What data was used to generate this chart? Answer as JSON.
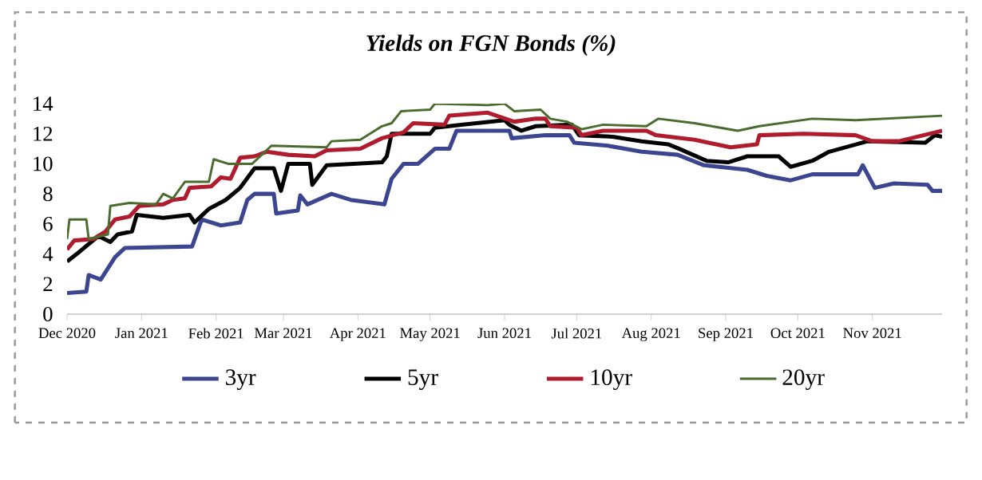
{
  "chart_data": {
    "type": "line",
    "title": "Yields on FGN Bonds (%)",
    "xlim": [
      "2020-12-01",
      "2021-11-30"
    ],
    "xticks": [
      {
        "value": "2020-12-01",
        "label": "Dec 2020"
      },
      {
        "value": "2021-01-01",
        "label": "Jan 2021"
      },
      {
        "value": "2021-02-01",
        "label": "Feb 2021"
      },
      {
        "value": "2021-03-01",
        "label": "Mar 2021"
      },
      {
        "value": "2021-04-01",
        "label": "Apr 2021"
      },
      {
        "value": "2021-05-01",
        "label": "May 2021"
      },
      {
        "value": "2021-06-01",
        "label": "Jun 2021"
      },
      {
        "value": "2021-07-01",
        "label": "Jul 2021"
      },
      {
        "value": "2021-08-01",
        "label": "Aug 2021"
      },
      {
        "value": "2021-09-01",
        "label": "Sep 2021"
      },
      {
        "value": "2021-10-01",
        "label": "Oct 2021"
      },
      {
        "value": "2021-11-01",
        "label": "Nov 2021"
      }
    ],
    "ylim": [
      0,
      14
    ],
    "yticks": [
      0,
      2,
      4,
      6,
      8,
      10,
      12,
      14
    ],
    "legend": "bottom",
    "series": [
      {
        "name": "3yr",
        "color": "#3c4590",
        "x": [
          "2020-12-01",
          "2020-12-09",
          "2020-12-10",
          "2020-12-15",
          "2020-12-21",
          "2020-12-25",
          "2021-01-22",
          "2021-01-26",
          "2021-02-03",
          "2021-02-11",
          "2021-02-14",
          "2021-02-17",
          "2021-02-25",
          "2021-02-26",
          "2021-03-07",
          "2021-03-08",
          "2021-03-11",
          "2021-03-21",
          "2021-03-29",
          "2021-04-12",
          "2021-04-15",
          "2021-04-20",
          "2021-04-26",
          "2021-05-03",
          "2021-05-09",
          "2021-05-12",
          "2021-06-03",
          "2021-06-04",
          "2021-06-18",
          "2021-06-28",
          "2021-06-30",
          "2021-07-14",
          "2021-07-28",
          "2021-08-12",
          "2021-08-23",
          "2021-09-10",
          "2021-09-18",
          "2021-09-28",
          "2021-10-07",
          "2021-10-26",
          "2021-10-28",
          "2021-11-02",
          "2021-11-10",
          "2021-11-24",
          "2021-11-26",
          "2021-11-30"
        ],
        "values": [
          1.4,
          1.5,
          2.6,
          2.3,
          3.8,
          4.4,
          4.5,
          6.3,
          5.9,
          6.1,
          7.6,
          8.0,
          8.0,
          6.7,
          6.9,
          7.9,
          7.3,
          8.0,
          7.6,
          7.3,
          9.0,
          10.0,
          10.0,
          11.0,
          11.0,
          12.2,
          12.2,
          11.7,
          11.9,
          11.9,
          11.4,
          11.2,
          10.8,
          10.6,
          9.9,
          9.6,
          9.2,
          8.9,
          9.3,
          9.3,
          9.9,
          8.4,
          8.7,
          8.6,
          8.2,
          8.2
        ]
      },
      {
        "name": "5yr",
        "color": "#000000",
        "x": [
          "2020-12-01",
          "2020-12-05",
          "2020-12-14",
          "2020-12-19",
          "2020-12-22",
          "2020-12-28",
          "2020-12-30",
          "2021-01-10",
          "2021-01-21",
          "2021-01-23",
          "2021-01-29",
          "2021-02-05",
          "2021-02-11",
          "2021-02-17",
          "2021-02-25",
          "2021-02-28",
          "2021-03-03",
          "2021-03-12",
          "2021-03-13",
          "2021-03-19",
          "2021-03-30",
          "2021-04-11",
          "2021-04-13",
          "2021-04-15",
          "2021-05-01",
          "2021-05-03",
          "2021-05-14",
          "2021-06-01",
          "2021-06-03",
          "2021-06-08",
          "2021-06-14",
          "2021-06-29",
          "2021-07-02",
          "2021-07-16",
          "2021-07-28",
          "2021-08-08",
          "2021-08-14",
          "2021-08-24",
          "2021-09-02",
          "2021-09-10",
          "2021-09-23",
          "2021-09-28",
          "2021-10-07",
          "2021-10-14",
          "2021-10-30",
          "2021-11-23",
          "2021-11-27",
          "2021-11-30"
        ],
        "values": [
          3.5,
          4.0,
          5.2,
          4.8,
          5.3,
          5.5,
          6.6,
          6.4,
          6.6,
          6.1,
          7.0,
          7.6,
          8.4,
          9.7,
          9.7,
          8.2,
          10.0,
          10.0,
          8.6,
          9.9,
          10.0,
          10.1,
          10.5,
          12.0,
          12.0,
          12.4,
          12.6,
          12.9,
          12.6,
          12.2,
          12.5,
          12.6,
          11.9,
          11.8,
          11.5,
          11.3,
          10.9,
          10.2,
          10.1,
          10.5,
          10.5,
          9.8,
          10.2,
          10.8,
          11.5,
          11.4,
          11.9,
          11.8
        ]
      },
      {
        "name": "10yr",
        "color": "#b01c2e",
        "x": [
          "2020-12-01",
          "2020-12-04",
          "2020-12-12",
          "2020-12-17",
          "2020-12-21",
          "2020-12-27",
          "2020-12-31",
          "2021-01-10",
          "2021-01-14",
          "2021-01-19",
          "2021-01-21",
          "2021-01-30",
          "2021-02-03",
          "2021-02-07",
          "2021-02-11",
          "2021-02-17",
          "2021-02-22",
          "2021-03-03",
          "2021-03-14",
          "2021-03-19",
          "2021-04-02",
          "2021-04-11",
          "2021-04-20",
          "2021-04-24",
          "2021-05-07",
          "2021-05-09",
          "2021-05-25",
          "2021-06-05",
          "2021-06-14",
          "2021-06-18",
          "2021-06-20",
          "2021-07-01",
          "2021-07-03",
          "2021-07-12",
          "2021-07-30",
          "2021-08-03",
          "2021-08-19",
          "2021-08-28",
          "2021-09-03",
          "2021-09-14",
          "2021-09-15",
          "2021-10-03",
          "2021-10-25",
          "2021-11-01",
          "2021-11-12",
          "2021-11-30"
        ],
        "values": [
          4.3,
          4.9,
          5.0,
          5.5,
          6.3,
          6.5,
          7.2,
          7.3,
          7.6,
          7.7,
          8.4,
          8.5,
          9.1,
          9.0,
          10.4,
          10.5,
          10.8,
          10.6,
          10.5,
          10.9,
          11.0,
          11.7,
          12.1,
          12.7,
          12.6,
          13.2,
          13.4,
          12.8,
          13.0,
          13.0,
          12.5,
          12.4,
          11.9,
          12.2,
          12.2,
          11.9,
          11.6,
          11.3,
          11.1,
          11.3,
          11.9,
          12.0,
          11.9,
          11.5,
          11.5,
          12.2
        ]
      },
      {
        "name": "20yr",
        "color": "#4a6b2e",
        "x": [
          "2020-12-01",
          "2020-12-02",
          "2020-12-09",
          "2020-12-10",
          "2020-12-18",
          "2020-12-19",
          "2020-12-27",
          "2021-01-07",
          "2021-01-10",
          "2021-01-14",
          "2021-01-19",
          "2021-01-29",
          "2021-01-31",
          "2021-02-06",
          "2021-02-16",
          "2021-02-24",
          "2021-03-19",
          "2021-03-21",
          "2021-04-02",
          "2021-04-11",
          "2021-04-15",
          "2021-04-19",
          "2021-05-01",
          "2021-05-03",
          "2021-05-25",
          "2021-06-01",
          "2021-06-05",
          "2021-06-16",
          "2021-06-20",
          "2021-06-27",
          "2021-07-03",
          "2021-07-12",
          "2021-07-30",
          "2021-08-04",
          "2021-08-19",
          "2021-09-06",
          "2021-09-15",
          "2021-10-07",
          "2021-10-25",
          "2021-11-30"
        ],
        "values": [
          5.0,
          6.3,
          6.3,
          5.0,
          5.3,
          7.2,
          7.4,
          7.3,
          8.0,
          7.7,
          8.8,
          8.8,
          10.3,
          10.0,
          10.0,
          11.2,
          11.1,
          11.5,
          11.6,
          12.5,
          12.7,
          13.5,
          13.6,
          14.0,
          13.9,
          14.0,
          13.5,
          13.6,
          13.0,
          12.8,
          12.3,
          12.6,
          12.5,
          13.0,
          12.7,
          12.2,
          12.5,
          13.0,
          12.9,
          13.2
        ]
      }
    ]
  }
}
